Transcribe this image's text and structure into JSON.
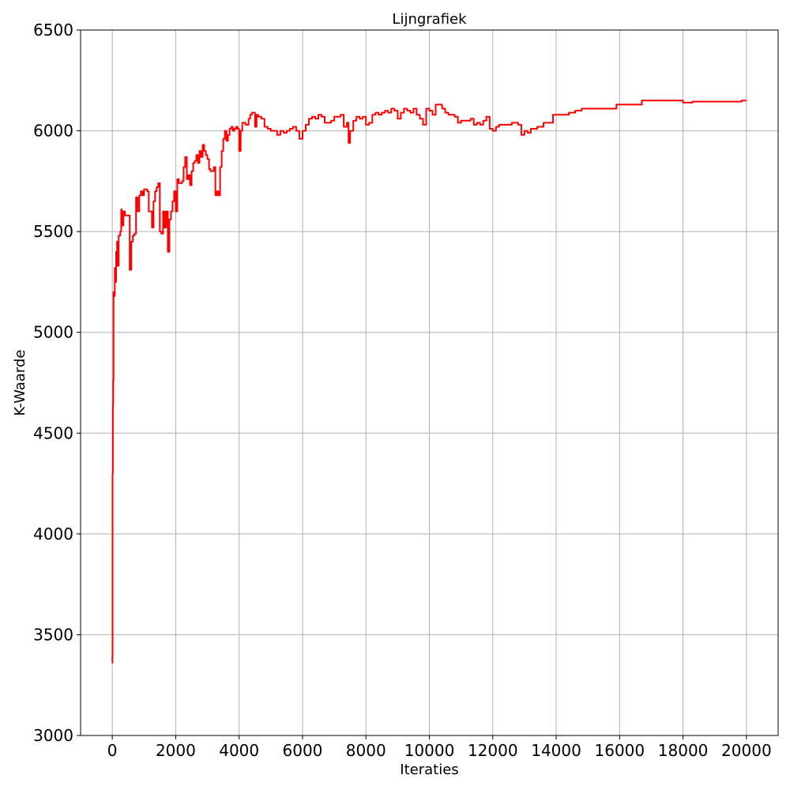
{
  "chart_data": {
    "type": "line",
    "title": "Lijngrafiek",
    "xlabel": "Iteraties",
    "ylabel": "K-Waarde",
    "xlim": [
      -1000,
      21000
    ],
    "ylim": [
      3000,
      6500
    ],
    "x_ticks": [
      0,
      2000,
      4000,
      6000,
      8000,
      10000,
      12000,
      14000,
      16000,
      18000,
      20000
    ],
    "y_ticks": [
      3000,
      3500,
      4000,
      4500,
      5000,
      5500,
      6000,
      6500
    ],
    "grid": true,
    "series": [
      {
        "color": "#ff0000",
        "step": true,
        "points": [
          [
            0,
            3360
          ],
          [
            5,
            3400
          ],
          [
            10,
            4300
          ],
          [
            20,
            4640
          ],
          [
            30,
            4760
          ],
          [
            40,
            5200
          ],
          [
            60,
            5180
          ],
          [
            80,
            5320
          ],
          [
            100,
            5250
          ],
          [
            120,
            5400
          ],
          [
            150,
            5450
          ],
          [
            170,
            5330
          ],
          [
            200,
            5480
          ],
          [
            250,
            5500
          ],
          [
            280,
            5610
          ],
          [
            300,
            5580
          ],
          [
            320,
            5530
          ],
          [
            350,
            5600
          ],
          [
            400,
            5580
          ],
          [
            500,
            5580
          ],
          [
            550,
            5310
          ],
          [
            600,
            5450
          ],
          [
            650,
            5480
          ],
          [
            700,
            5490
          ],
          [
            750,
            5670
          ],
          [
            800,
            5600
          ],
          [
            850,
            5680
          ],
          [
            900,
            5700
          ],
          [
            950,
            5680
          ],
          [
            1000,
            5710
          ],
          [
            1100,
            5700
          ],
          [
            1150,
            5600
          ],
          [
            1200,
            5600
          ],
          [
            1250,
            5520
          ],
          [
            1300,
            5650
          ],
          [
            1350,
            5700
          ],
          [
            1400,
            5720
          ],
          [
            1450,
            5740
          ],
          [
            1500,
            5500
          ],
          [
            1550,
            5490
          ],
          [
            1600,
            5600
          ],
          [
            1650,
            5520
          ],
          [
            1700,
            5600
          ],
          [
            1750,
            5400
          ],
          [
            1800,
            5560
          ],
          [
            1850,
            5600
          ],
          [
            1900,
            5650
          ],
          [
            1950,
            5700
          ],
          [
            2000,
            5600
          ],
          [
            2050,
            5760
          ],
          [
            2100,
            5740
          ],
          [
            2200,
            5750
          ],
          [
            2250,
            5820
          ],
          [
            2300,
            5870
          ],
          [
            2350,
            5760
          ],
          [
            2400,
            5780
          ],
          [
            2450,
            5730
          ],
          [
            2500,
            5800
          ],
          [
            2550,
            5840
          ],
          [
            2600,
            5850
          ],
          [
            2650,
            5880
          ],
          [
            2700,
            5840
          ],
          [
            2750,
            5900
          ],
          [
            2800,
            5870
          ],
          [
            2850,
            5930
          ],
          [
            2900,
            5900
          ],
          [
            2950,
            5880
          ],
          [
            3000,
            5860
          ],
          [
            3050,
            5810
          ],
          [
            3100,
            5800
          ],
          [
            3200,
            5820
          ],
          [
            3250,
            5680
          ],
          [
            3300,
            5700
          ],
          [
            3350,
            5680
          ],
          [
            3400,
            5820
          ],
          [
            3450,
            5900
          ],
          [
            3500,
            5960
          ],
          [
            3550,
            6000
          ],
          [
            3600,
            5950
          ],
          [
            3650,
            5980
          ],
          [
            3700,
            6010
          ],
          [
            3750,
            6020
          ],
          [
            3800,
            6000
          ],
          [
            3850,
            6010
          ],
          [
            3900,
            6020
          ],
          [
            3950,
            6010
          ],
          [
            4000,
            5900
          ],
          [
            4050,
            6000
          ],
          [
            4100,
            6040
          ],
          [
            4200,
            6030
          ],
          [
            4300,
            6060
          ],
          [
            4350,
            6080
          ],
          [
            4400,
            6090
          ],
          [
            4500,
            6020
          ],
          [
            4550,
            6080
          ],
          [
            4600,
            6070
          ],
          [
            4700,
            6060
          ],
          [
            4800,
            6020
          ],
          [
            4900,
            6010
          ],
          [
            5000,
            6000
          ],
          [
            5100,
            6000
          ],
          [
            5200,
            5980
          ],
          [
            5300,
            6000
          ],
          [
            5400,
            5990
          ],
          [
            5500,
            6000
          ],
          [
            5600,
            6010
          ],
          [
            5700,
            6020
          ],
          [
            5800,
            6000
          ],
          [
            5900,
            5960
          ],
          [
            6000,
            6000
          ],
          [
            6100,
            6030
          ],
          [
            6200,
            6060
          ],
          [
            6300,
            6070
          ],
          [
            6400,
            6060
          ],
          [
            6500,
            6080
          ],
          [
            6600,
            6070
          ],
          [
            6700,
            6040
          ],
          [
            6800,
            6040
          ],
          [
            6900,
            6050
          ],
          [
            7000,
            6070
          ],
          [
            7100,
            6070
          ],
          [
            7200,
            6080
          ],
          [
            7300,
            6020
          ],
          [
            7400,
            6040
          ],
          [
            7450,
            5940
          ],
          [
            7500,
            6000
          ],
          [
            7600,
            6050
          ],
          [
            7700,
            6070
          ],
          [
            7800,
            6060
          ],
          [
            7900,
            6070
          ],
          [
            8000,
            6030
          ],
          [
            8100,
            6040
          ],
          [
            8200,
            6080
          ],
          [
            8300,
            6090
          ],
          [
            8400,
            6080
          ],
          [
            8500,
            6090
          ],
          [
            8600,
            6100
          ],
          [
            8700,
            6090
          ],
          [
            8800,
            6110
          ],
          [
            8900,
            6100
          ],
          [
            9000,
            6060
          ],
          [
            9100,
            6090
          ],
          [
            9200,
            6110
          ],
          [
            9300,
            6100
          ],
          [
            9400,
            6090
          ],
          [
            9500,
            6110
          ],
          [
            9600,
            6080
          ],
          [
            9700,
            6060
          ],
          [
            9800,
            6030
          ],
          [
            9900,
            6110
          ],
          [
            10000,
            6100
          ],
          [
            10100,
            6080
          ],
          [
            10200,
            6130
          ],
          [
            10300,
            6130
          ],
          [
            10400,
            6110
          ],
          [
            10500,
            6090
          ],
          [
            10600,
            6080
          ],
          [
            10800,
            6070
          ],
          [
            10900,
            6040
          ],
          [
            11000,
            6050
          ],
          [
            11200,
            6050
          ],
          [
            11300,
            6060
          ],
          [
            11400,
            6030
          ],
          [
            11500,
            6040
          ],
          [
            11600,
            6030
          ],
          [
            11700,
            6050
          ],
          [
            11800,
            6070
          ],
          [
            11900,
            6010
          ],
          [
            12000,
            6000
          ],
          [
            12100,
            6020
          ],
          [
            12200,
            6030
          ],
          [
            12500,
            6030
          ],
          [
            12600,
            6040
          ],
          [
            12700,
            6040
          ],
          [
            12800,
            6030
          ],
          [
            12900,
            5980
          ],
          [
            13000,
            6000
          ],
          [
            13100,
            5990
          ],
          [
            13200,
            6010
          ],
          [
            13400,
            6020
          ],
          [
            13600,
            6040
          ],
          [
            13900,
            6080
          ],
          [
            14000,
            6080
          ],
          [
            14300,
            6080
          ],
          [
            14400,
            6090
          ],
          [
            14600,
            6100
          ],
          [
            14800,
            6110
          ],
          [
            15500,
            6110
          ],
          [
            15900,
            6130
          ],
          [
            16500,
            6130
          ],
          [
            16700,
            6150
          ],
          [
            17000,
            6150
          ],
          [
            17800,
            6150
          ],
          [
            18000,
            6140
          ],
          [
            18300,
            6145
          ],
          [
            19000,
            6145
          ],
          [
            19800,
            6145
          ],
          [
            19850,
            6150
          ],
          [
            20000,
            6150
          ]
        ]
      }
    ]
  }
}
